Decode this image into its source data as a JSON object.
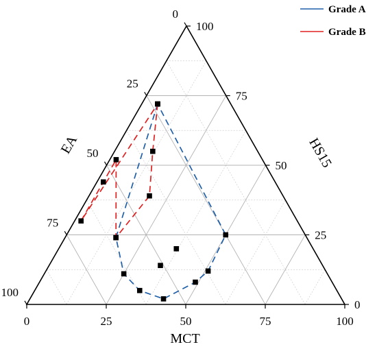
{
  "chart_data": {
    "type": "scatter",
    "subtype": "ternary",
    "title": "",
    "axes": {
      "bottom": {
        "label": "MCT",
        "ticks": [
          "0",
          "25",
          "50",
          "75",
          "100"
        ]
      },
      "left": {
        "label": "EA",
        "ticks": [
          "0",
          "25",
          "50",
          "75",
          "100"
        ]
      },
      "right": {
        "label": "HS15",
        "ticks": [
          "0",
          "25",
          "50",
          "75",
          "100"
        ]
      }
    },
    "grid": true,
    "grid_step": 12.5,
    "legend": {
      "position": "top-right"
    },
    "series": [
      {
        "name": "Grade A",
        "color": "#1f5fa8",
        "line_style": "dashed",
        "points": [
          {
            "MCT": 5,
            "HS15": 72,
            "EA": 23
          },
          {
            "MCT": 16,
            "HS15": 24,
            "EA": 60
          },
          {
            "MCT": 25,
            "HS15": 11,
            "EA": 64
          },
          {
            "MCT": 33,
            "HS15": 5,
            "EA": 62
          },
          {
            "MCT": 42,
            "HS15": 2,
            "EA": 56
          },
          {
            "MCT": 49,
            "HS15": 8,
            "EA": 43
          },
          {
            "MCT": 51,
            "HS15": 12,
            "EA": 37
          },
          {
            "MCT": 50,
            "HS15": 25,
            "EA": 25
          },
          {
            "MCT": 5,
            "HS15": 72,
            "EA": 23
          }
        ]
      },
      {
        "name": "Grade B",
        "color": "#e02020",
        "line_style": "dashed",
        "points": [
          {
            "MCT": 5,
            "HS15": 72,
            "EA": 23
          },
          {
            "MCT": 12,
            "HS15": 55,
            "EA": 33
          },
          {
            "MCT": 19,
            "HS15": 39,
            "EA": 42
          },
          {
            "MCT": 16,
            "HS15": 24,
            "EA": 60
          },
          {
            "MCT": 2,
            "HS15": 52,
            "EA": 46
          },
          {
            "MCT": 2,
            "HS15": 44,
            "EA": 54
          },
          {
            "MCT": 2,
            "HS15": 30,
            "EA": 68
          },
          {
            "MCT": 5,
            "HS15": 72,
            "EA": 23
          }
        ]
      }
    ],
    "extra_points": [
      {
        "MCT": 35,
        "HS15": 14,
        "EA": 51
      },
      {
        "MCT": 37,
        "HS15": 20,
        "EA": 43
      }
    ]
  }
}
